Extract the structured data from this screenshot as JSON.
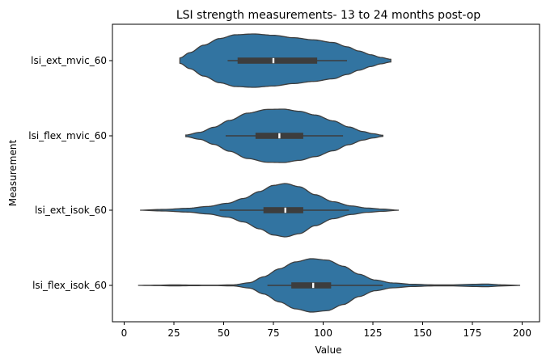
{
  "chart_data": {
    "type": "violin",
    "title": "LSI strength measurements- 13 to 24 months post-op",
    "xlabel": "Value",
    "ylabel": "Measurement",
    "xlim": [
      -5,
      205
    ],
    "xticks": [
      0,
      25,
      50,
      75,
      100,
      125,
      150,
      175,
      200
    ],
    "grid": false,
    "color": "#3274a1",
    "edge_color": "#3d3d3d",
    "categories": [
      "lsi_ext_mvic_60",
      "lsi_flex_mvic_60",
      "lsi_ext_isok_60",
      "lsi_flex_isok_60"
    ],
    "violins": [
      {
        "category": "lsi_ext_mvic_60",
        "min": 28,
        "q1": 57,
        "median": 75,
        "q3": 97,
        "max": 112,
        "whisker_low": 52,
        "whisker_high": 112,
        "kde_min": 28,
        "kde_max": 134,
        "density": [
          [
            28,
            0.1
          ],
          [
            33,
            0.3
          ],
          [
            40,
            0.58
          ],
          [
            48,
            0.83
          ],
          [
            56,
            0.97
          ],
          [
            65,
            1.0
          ],
          [
            75,
            0.95
          ],
          [
            85,
            0.86
          ],
          [
            95,
            0.78
          ],
          [
            105,
            0.68
          ],
          [
            112,
            0.52
          ],
          [
            118,
            0.36
          ],
          [
            124,
            0.22
          ],
          [
            129,
            0.12
          ],
          [
            134,
            0.05
          ]
        ]
      },
      {
        "category": "lsi_flex_mvic_60",
        "min": 31,
        "q1": 66,
        "median": 78,
        "q3": 90,
        "max": 110,
        "whisker_low": 51,
        "whisker_high": 110,
        "kde_min": 31,
        "kde_max": 130,
        "density": [
          [
            31,
            0.03
          ],
          [
            38,
            0.13
          ],
          [
            45,
            0.32
          ],
          [
            53,
            0.58
          ],
          [
            62,
            0.85
          ],
          [
            72,
            0.99
          ],
          [
            80,
            1.0
          ],
          [
            88,
            0.92
          ],
          [
            96,
            0.78
          ],
          [
            105,
            0.56
          ],
          [
            113,
            0.33
          ],
          [
            120,
            0.16
          ],
          [
            125,
            0.08
          ],
          [
            130,
            0.02
          ]
        ]
      },
      {
        "category": "lsi_ext_isok_60",
        "min": 8,
        "q1": 70,
        "median": 81,
        "q3": 90,
        "max": 113,
        "whisker_low": 48,
        "whisker_high": 113,
        "kde_min": 8,
        "kde_max": 138,
        "density": [
          [
            8,
            0.0
          ],
          [
            20,
            0.03
          ],
          [
            32,
            0.07
          ],
          [
            42,
            0.14
          ],
          [
            52,
            0.26
          ],
          [
            60,
            0.44
          ],
          [
            68,
            0.7
          ],
          [
            75,
            0.93
          ],
          [
            81,
            1.0
          ],
          [
            88,
            0.88
          ],
          [
            96,
            0.58
          ],
          [
            105,
            0.32
          ],
          [
            114,
            0.16
          ],
          [
            122,
            0.08
          ],
          [
            130,
            0.04
          ],
          [
            138,
            0.0
          ]
        ]
      },
      {
        "category": "lsi_flex_isok_60",
        "min": 7,
        "q1": 84,
        "median": 95,
        "q3": 104,
        "max": 130,
        "whisker_low": 72,
        "whisker_high": 130,
        "kde_min": 7,
        "kde_max": 199,
        "density": [
          [
            7,
            0.0
          ],
          [
            15,
            0.005
          ],
          [
            25,
            0.02
          ],
          [
            35,
            0.01
          ],
          [
            45,
            0.005
          ],
          [
            55,
            0.02
          ],
          [
            63,
            0.1
          ],
          [
            70,
            0.32
          ],
          [
            78,
            0.62
          ],
          [
            86,
            0.88
          ],
          [
            94,
            1.0
          ],
          [
            102,
            0.95
          ],
          [
            110,
            0.72
          ],
          [
            118,
            0.42
          ],
          [
            126,
            0.2
          ],
          [
            135,
            0.09
          ],
          [
            145,
            0.04
          ],
          [
            155,
            0.02
          ],
          [
            165,
            0.02
          ],
          [
            175,
            0.04
          ],
          [
            182,
            0.05
          ],
          [
            190,
            0.02
          ],
          [
            199,
            0.0
          ]
        ]
      }
    ]
  }
}
